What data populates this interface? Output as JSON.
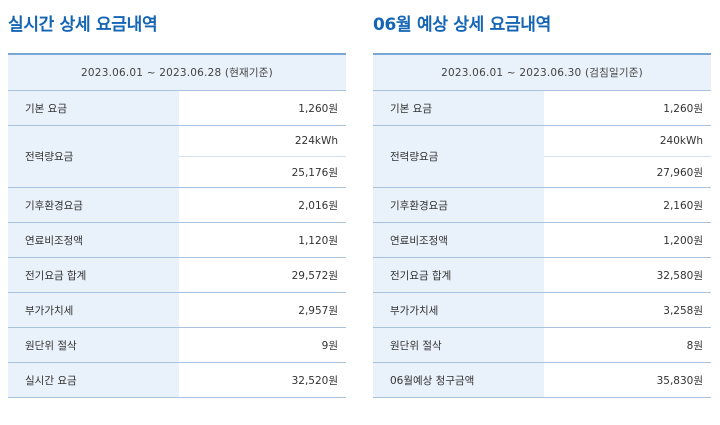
{
  "realtime": {
    "title": "실시간 상세 요금내역",
    "period": "2023.06.01 ~ 2023.06.28 (현재기준)",
    "rows": {
      "basic": {
        "label": "기본 요금",
        "value": "1,260원"
      },
      "energy": {
        "label": "전력량요금",
        "usage": "224kWh",
        "value": "25,176원"
      },
      "climate": {
        "label": "기후환경요금",
        "value": "2,016원"
      },
      "fuel": {
        "label": "연료비조정액",
        "value": "1,120원"
      },
      "total": {
        "label": "전기요금 합계",
        "value": "29,572원"
      },
      "vat": {
        "label": "부가가치세",
        "value": "2,957원"
      },
      "rounding": {
        "label": "원단위 절삭",
        "value": "9원"
      },
      "final": {
        "label": "실시간 요금",
        "value": "32,520원"
      }
    }
  },
  "forecast": {
    "title": "06월 예상 상세 요금내역",
    "period": "2023.06.01 ~ 2023.06.30 (검침일기준)",
    "rows": {
      "basic": {
        "label": "기본 요금",
        "value": "1,260원"
      },
      "energy": {
        "label": "전력량요금",
        "usage": "240kWh",
        "value": "27,960원"
      },
      "climate": {
        "label": "기후환경요금",
        "value": "2,160원"
      },
      "fuel": {
        "label": "연료비조정액",
        "value": "1,200원"
      },
      "total": {
        "label": "전기요금 합계",
        "value": "32,580원"
      },
      "vat": {
        "label": "부가가치세",
        "value": "3,258원"
      },
      "rounding": {
        "label": "원단위 절삭",
        "value": "8원"
      },
      "final": {
        "label": "06월예상 청구금액",
        "value": "35,830원"
      }
    }
  }
}
